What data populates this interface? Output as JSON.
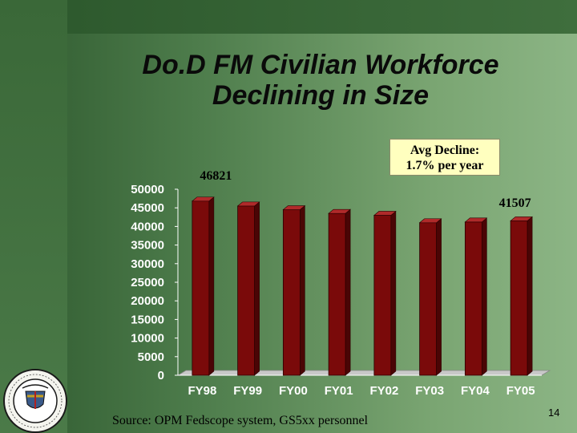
{
  "slide": {
    "title_line1": "Do.D FM Civilian Workforce",
    "title_line2": "Declining in Size",
    "callout_line1": "Avg Decline:",
    "callout_line2": "1.7%  per year",
    "source": "Source: OPM Fedscope system, GS5xx personnel",
    "page_number": "14",
    "logo_icon": "american-society-of-military-comptrollers-seal"
  },
  "chart_data": {
    "type": "bar",
    "categories": [
      "FY98",
      "FY99",
      "FY00",
      "FY01",
      "FY02",
      "FY03",
      "FY04",
      "FY05"
    ],
    "values": [
      46821,
      45500,
      44500,
      43500,
      43000,
      41000,
      41200,
      41507
    ],
    "data_labels": [
      {
        "category": "FY98",
        "text": "46821"
      },
      {
        "category": "FY05",
        "text": "41507"
      }
    ],
    "yticks": [
      "0",
      "5000",
      "10000",
      "15000",
      "20000",
      "25000",
      "30000",
      "35000",
      "40000",
      "45000",
      "50000"
    ],
    "ylim": [
      0,
      50000
    ],
    "bar_color": "#7a0a0a",
    "grid": false,
    "legend": "none"
  }
}
